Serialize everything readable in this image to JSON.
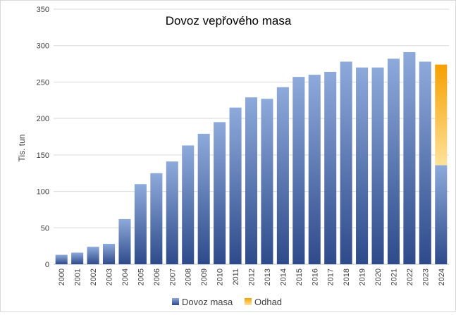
{
  "chart_data": {
    "type": "bar",
    "title": "Dovoz vepřového masa",
    "ylabel": "Tis. tun",
    "xlabel": "",
    "ylim": [
      0,
      350
    ],
    "yticks": [
      0,
      50,
      100,
      150,
      200,
      250,
      300,
      350
    ],
    "grid": true,
    "legend_position": "bottom",
    "categories": [
      "2000",
      "2001",
      "2002",
      "2003",
      "2004",
      "2005",
      "2006",
      "2007",
      "2008",
      "2009",
      "2010",
      "2011",
      "2012",
      "2013",
      "2014",
      "2015",
      "2016",
      "2017",
      "2018",
      "2019",
      "2020",
      "2021",
      "2022",
      "2023",
      "2024"
    ],
    "series": [
      {
        "name": "Dovoz masa",
        "color_top": "#8eaadb",
        "color_bottom": "#2e4a8a",
        "values": [
          13,
          16,
          24,
          28,
          62,
          110,
          125,
          141,
          163,
          179,
          195,
          215,
          229,
          227,
          243,
          257,
          260,
          264,
          278,
          270,
          270,
          282,
          291,
          278,
          136
        ]
      },
      {
        "name": "Odhad",
        "color_top": "#f5a000",
        "color_bottom": "#ffe29a",
        "values": [
          0,
          0,
          0,
          0,
          0,
          0,
          0,
          0,
          0,
          0,
          0,
          0,
          0,
          0,
          0,
          0,
          0,
          0,
          0,
          0,
          0,
          0,
          0,
          0,
          138
        ]
      }
    ]
  }
}
